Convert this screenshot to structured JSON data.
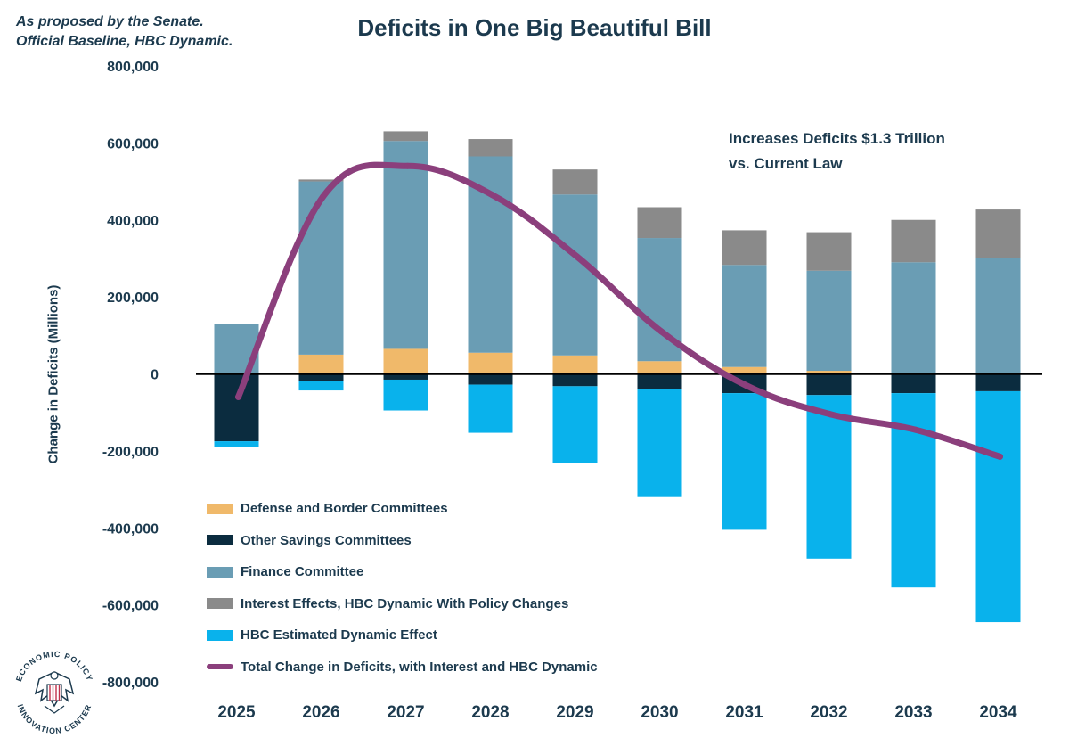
{
  "header": {
    "subtitle_line1": "As proposed by the Senate.",
    "subtitle_line2": "Official Baseline, HBC Dynamic.",
    "title": "Deficits in One Big Beautiful Bill"
  },
  "annotation": {
    "line1": "Increases Deficits $1.3 Trillion",
    "line2": "vs. Current Law"
  },
  "legend": {
    "items": [
      {
        "label": "Defense and Border Committees",
        "color": "#f0b96a",
        "kind": "box"
      },
      {
        "label": "Other Savings Committees",
        "color": "#0b2c3f",
        "kind": "box"
      },
      {
        "label": "Finance Committee",
        "color": "#6a9db4",
        "kind": "box"
      },
      {
        "label": "Interest Effects, HBC Dynamic With Policy Changes",
        "color": "#8a8a8a",
        "kind": "box"
      },
      {
        "label": "HBC Estimated Dynamic Effect",
        "color": "#09b2ec",
        "kind": "box"
      },
      {
        "label": "Total Change in Deficits, with Interest and HBC Dynamic",
        "color": "#8b3f7c",
        "kind": "line"
      }
    ]
  },
  "logo": {
    "text_top": "ECONOMIC POLICY",
    "text_bottom": "INNOVATION CENTER",
    "icon": "eagle-seal-icon"
  },
  "chart_data": {
    "type": "bar",
    "stacked": true,
    "title": "Deficits in One Big Beautiful Bill",
    "xlabel": "",
    "ylabel": "Change in Deficits (Millions)",
    "ylim": [
      -800000,
      800000
    ],
    "yticks": [
      800000,
      600000,
      400000,
      200000,
      0,
      -200000,
      -400000,
      -600000,
      -800000
    ],
    "ytick_labels": [
      "800,000",
      "600,000",
      "400,000",
      "200,000",
      "0",
      "-200,000",
      "-400,000",
      "-600,000",
      "-800,000"
    ],
    "categories": [
      "2025",
      "2026",
      "2027",
      "2028",
      "2029",
      "2030",
      "2031",
      "2032",
      "2033",
      "2034"
    ],
    "series": [
      {
        "name": "Defense and Border Committees",
        "color": "#f0b96a",
        "stack": "pos",
        "values": [
          0,
          50000,
          65000,
          55000,
          48000,
          33000,
          18000,
          8000,
          2000,
          0
        ]
      },
      {
        "name": "Finance Committee",
        "color": "#6a9db4",
        "stack": "pos",
        "values": [
          130000,
          450000,
          540000,
          510000,
          418000,
          320000,
          265000,
          260000,
          288000,
          302000
        ]
      },
      {
        "name": "Interest Effects, HBC Dynamic With Policy Changes",
        "color": "#8a8a8a",
        "stack": "pos",
        "values": [
          0,
          5000,
          25000,
          45000,
          65000,
          80000,
          90000,
          100000,
          110000,
          125000
        ]
      },
      {
        "name": "Other Savings Committees",
        "color": "#0b2c3f",
        "stack": "neg",
        "values": [
          -175000,
          -18000,
          -15000,
          -28000,
          -32000,
          -40000,
          -50000,
          -55000,
          -50000,
          -45000
        ]
      },
      {
        "name": "HBC Estimated Dynamic Effect",
        "color": "#09b2ec",
        "stack": "neg",
        "values": [
          -15000,
          -25000,
          -80000,
          -125000,
          -200000,
          -280000,
          -355000,
          -425000,
          -505000,
          -600000
        ]
      }
    ],
    "line": {
      "name": "Total Change in Deficits, with Interest and HBC Dynamic",
      "color": "#8b3f7c",
      "values": [
        -60000,
        460000,
        540000,
        465000,
        305000,
        110000,
        -30000,
        -105000,
        -145000,
        -215000
      ]
    },
    "zero_line": true,
    "grid": false
  }
}
